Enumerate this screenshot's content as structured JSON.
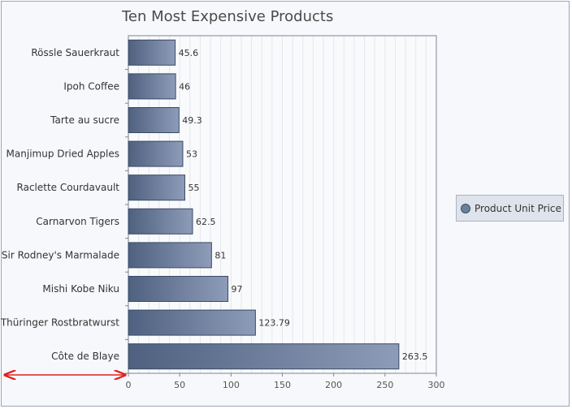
{
  "chart_data": {
    "type": "bar",
    "orientation": "horizontal",
    "title": "Ten Most Expensive Products",
    "categories": [
      "Rössle Sauerkraut",
      "Ipoh Coffee",
      "Tarte au sucre",
      "Manjimup Dried Apples",
      "Raclette Courdavault",
      "Carnarvon Tigers",
      "Sir Rodney's Marmalade",
      "Mishi Kobe Niku",
      "Thüringer Rostbratwurst",
      "Côte de Blaye"
    ],
    "series": [
      {
        "name": "Product Unit Price",
        "values": [
          45.6,
          46,
          49.3,
          53,
          55,
          62.5,
          81,
          97,
          123.79,
          263.5
        ],
        "value_labels": [
          "45.6",
          "46",
          "49.3",
          "53",
          "55",
          "62.5",
          "81",
          "97",
          "123.79",
          "263.5"
        ]
      }
    ],
    "xlim": [
      0,
      300
    ],
    "xticks": [
      "0",
      "50",
      "100",
      "150",
      "200",
      "250",
      "300"
    ],
    "grid": true,
    "legend_position": "right",
    "colors": {
      "bar": "#6a7d9b",
      "bar_light": "#8d9cb8",
      "bar_dark": "#4f6180",
      "bar_border": "#3b4a63",
      "grid": "#e4e7ee",
      "arrow": "#e02020"
    }
  }
}
